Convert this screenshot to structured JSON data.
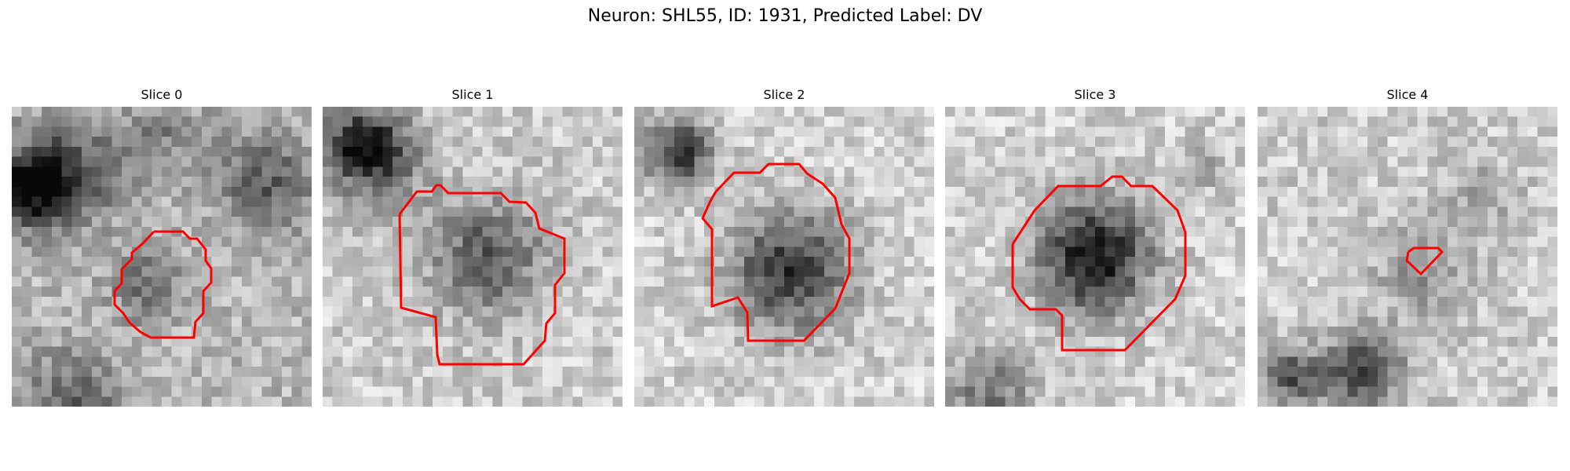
{
  "figure": {
    "title": "Neuron: SHL55, ID: 1931, Predicted Label: DV"
  },
  "colors": {
    "contour": "#ff0000"
  },
  "panels": [
    {
      "title": "Slice 0"
    },
    {
      "title": "Slice 1"
    },
    {
      "title": "Slice 2"
    },
    {
      "title": "Slice 3"
    },
    {
      "title": "Slice 4"
    }
  ]
}
